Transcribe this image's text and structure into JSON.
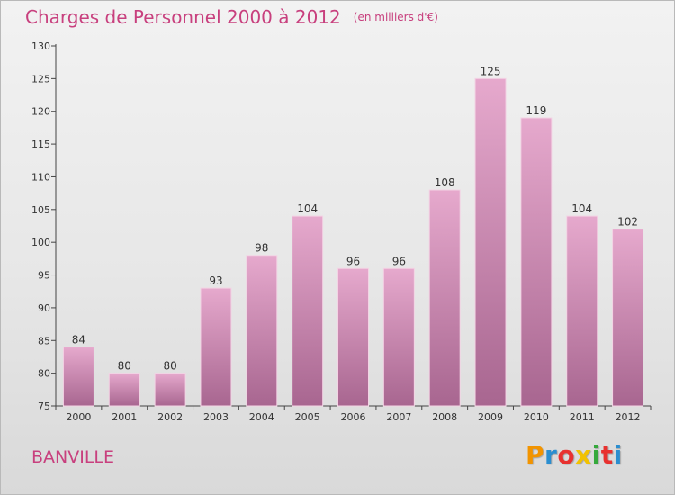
{
  "header": {
    "title": "Charges de Personnel 2000 à 2012",
    "subtitle": "(en milliers d'€)"
  },
  "footer": {
    "city": "BANVILLE",
    "logo_text": "Proxiti",
    "logo_colors": [
      "#f29400",
      "#2a8ed0",
      "#e8312f",
      "#f2c200",
      "#35a93c",
      "#e8312f",
      "#2a8ed0"
    ]
  },
  "colors": {
    "accent": "#c8407e",
    "bar_top": "#e6a9cd",
    "bar_bottom": "#a86690",
    "axis": "#444444"
  },
  "chart_data": {
    "type": "bar",
    "title": "Charges de Personnel 2000 à 2012",
    "subtitle": "(en milliers d'€)",
    "xlabel": "",
    "ylabel": "",
    "categories": [
      "2000",
      "2001",
      "2002",
      "2003",
      "2004",
      "2005",
      "2006",
      "2007",
      "2008",
      "2009",
      "2010",
      "2011",
      "2012"
    ],
    "values": [
      84,
      80,
      80,
      93,
      98,
      104,
      96,
      96,
      108,
      125,
      119,
      104,
      102
    ],
    "ylim": [
      75,
      130
    ],
    "yticks": [
      75,
      80,
      85,
      90,
      95,
      100,
      105,
      110,
      115,
      120,
      125,
      130
    ],
    "grid": false,
    "data_labels": true
  }
}
